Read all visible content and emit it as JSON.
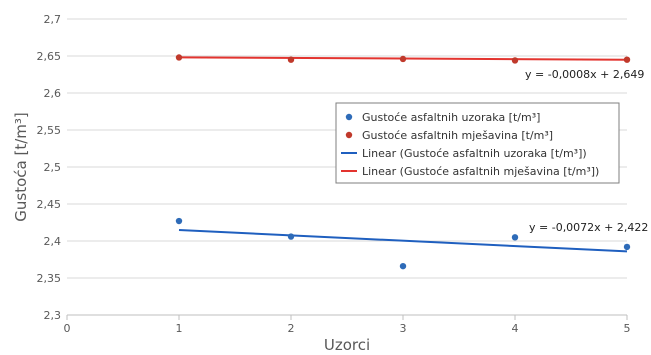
{
  "chart_data": {
    "type": "scatter",
    "xlabel": "Uzorci",
    "ylabel": "Gustoća [t/m³]",
    "xlim": [
      0,
      5
    ],
    "ylim": [
      2.3,
      2.7
    ],
    "x_ticks": [
      0,
      1,
      2,
      3,
      4,
      5
    ],
    "x_tick_labels": [
      "0",
      "1",
      "2",
      "3",
      "4",
      "5"
    ],
    "y_ticks": [
      2.3,
      2.35,
      2.4,
      2.45,
      2.5,
      2.55,
      2.6,
      2.65,
      2.7
    ],
    "y_tick_labels": [
      "2,3",
      "2,35",
      "2,4",
      "2,45",
      "2,5",
      "2,55",
      "2,6",
      "2,65",
      "2,7"
    ],
    "grid": "horizontal",
    "legend_position": "center-right",
    "series": [
      {
        "name": "Gustoće asfaltnih uzoraka [t/m³]",
        "kind": "scatter",
        "color": "#2e6bb8",
        "x": [
          1,
          2,
          3,
          4,
          5
        ],
        "y": [
          2.427,
          2.406,
          2.366,
          2.405,
          2.392
        ]
      },
      {
        "name": "Gustoće asfaltnih mješavina [t/m³]",
        "kind": "scatter",
        "color": "#c0392b",
        "x": [
          1,
          2,
          3,
          4,
          5
        ],
        "y": [
          2.648,
          2.645,
          2.646,
          2.644,
          2.645
        ]
      },
      {
        "name": "Linear (Gustoće asfaltnih uzoraka [t/m³])",
        "kind": "trendline",
        "color": "#1f5fbf",
        "slope": -0.0072,
        "intercept": 2.422,
        "x_range": [
          1,
          5
        ],
        "equation": "y = -0,0072x + 2,422"
      },
      {
        "name": "Linear (Gustoće asfaltnih mješavina [t/m³])",
        "kind": "trendline",
        "color": "#e3342f",
        "slope": -0.0008,
        "intercept": 2.649,
        "x_range": [
          1,
          5
        ],
        "equation": "y = -0,0008x + 2,649"
      }
    ]
  }
}
